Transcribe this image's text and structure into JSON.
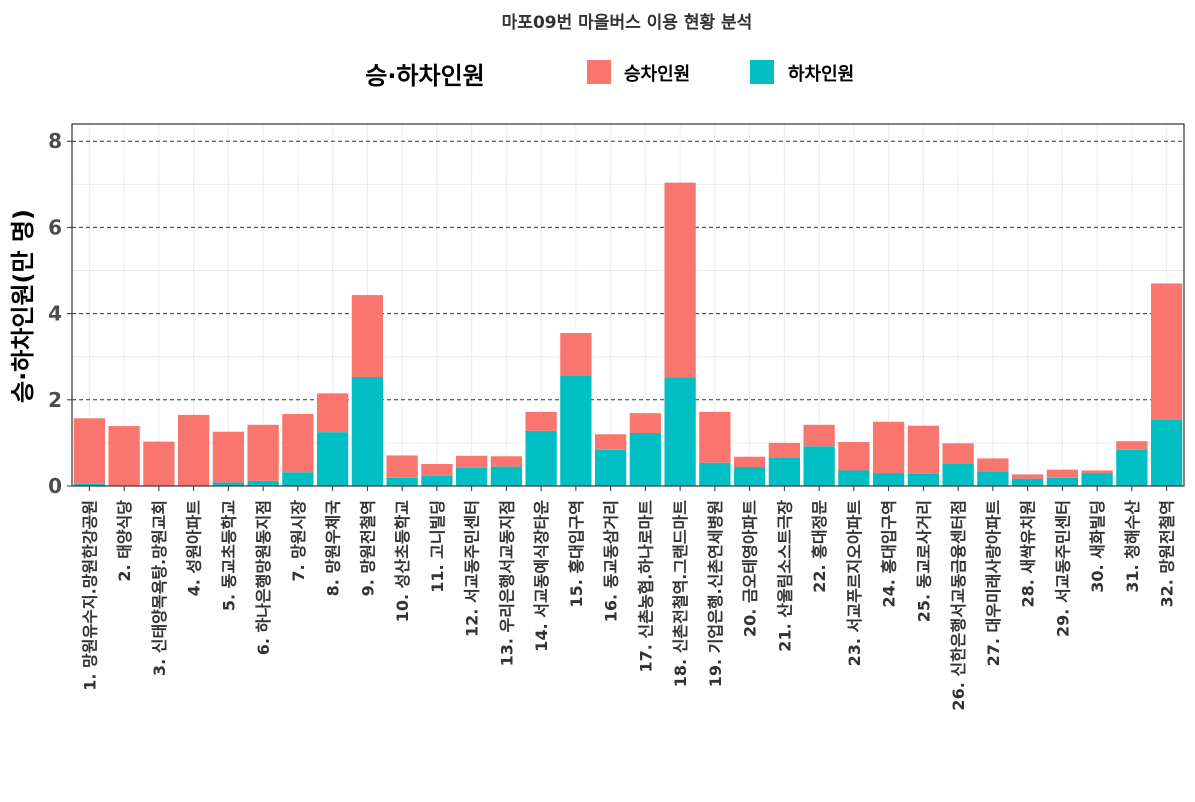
{
  "chart_data": {
    "type": "bar",
    "stacked": true,
    "title": "마포09번 마을버스 이용 현황 분석",
    "ylabel": "승·하차인원(만 명)",
    "xlabel": "",
    "legend_title": "승·하차인원",
    "legend_position": "top",
    "ylim": [
      0,
      8.4
    ],
    "yticks": [
      0,
      2,
      4,
      6,
      8
    ],
    "grid": true,
    "categories": [
      "1. 망원유수지.망원한강공원",
      "2. 태양식당",
      "3. 신태양목욕탕.망원교회",
      "4. 성원아파트",
      "5. 동교초등학교",
      "6. 하나은행망원동지점",
      "7. 망원시장",
      "8. 망원우체국",
      "9. 망원전철역",
      "10. 성산초등학교",
      "11. 고니빌딩",
      "12. 서교동주민센터",
      "13. 우리은행서교동지점",
      "14. 서교동예식장타운",
      "15. 홍대입구역",
      "16. 동교동삼거리",
      "17. 신촌농협.하나로마트",
      "18. 신촌전철역.그랜드마트",
      "19. 기업은행.신촌연세병원",
      "20. 금오테영아파트",
      "21. 산울림소스트극장",
      "22. 홍대정문",
      "23. 서교푸르지오아파트",
      "24. 홍대입구역",
      "25. 동교로사거리",
      "26. 신한은행서교동금융센터점",
      "27. 대우미래사랑아파트",
      "28. 새싹유치원",
      "29. 서교동주민센터",
      "30. 새화빌딩",
      "31. 청해수산",
      "32. 망원전철역"
    ],
    "series": [
      {
        "name": "승차인원",
        "color": "#F8766D",
        "values": [
          1.52,
          1.38,
          1.02,
          1.64,
          1.18,
          1.3,
          1.35,
          0.9,
          1.9,
          0.52,
          0.27,
          0.28,
          0.24,
          0.44,
          0.98,
          0.36,
          0.46,
          4.52,
          1.18,
          0.24,
          0.35,
          0.5,
          0.66,
          1.2,
          1.12,
          0.48,
          0.3,
          0.1,
          0.19,
          0.06,
          0.2,
          3.16
        ]
      },
      {
        "name": "하차인원",
        "color": "#00BFC4",
        "values": [
          0.05,
          0.01,
          0.01,
          0.01,
          0.08,
          0.12,
          0.32,
          1.25,
          2.53,
          0.19,
          0.24,
          0.42,
          0.45,
          1.28,
          2.57,
          0.84,
          1.23,
          2.52,
          0.54,
          0.44,
          0.65,
          0.92,
          0.36,
          0.29,
          0.28,
          0.51,
          0.34,
          0.17,
          0.19,
          0.3,
          0.84,
          1.54
        ]
      }
    ]
  }
}
